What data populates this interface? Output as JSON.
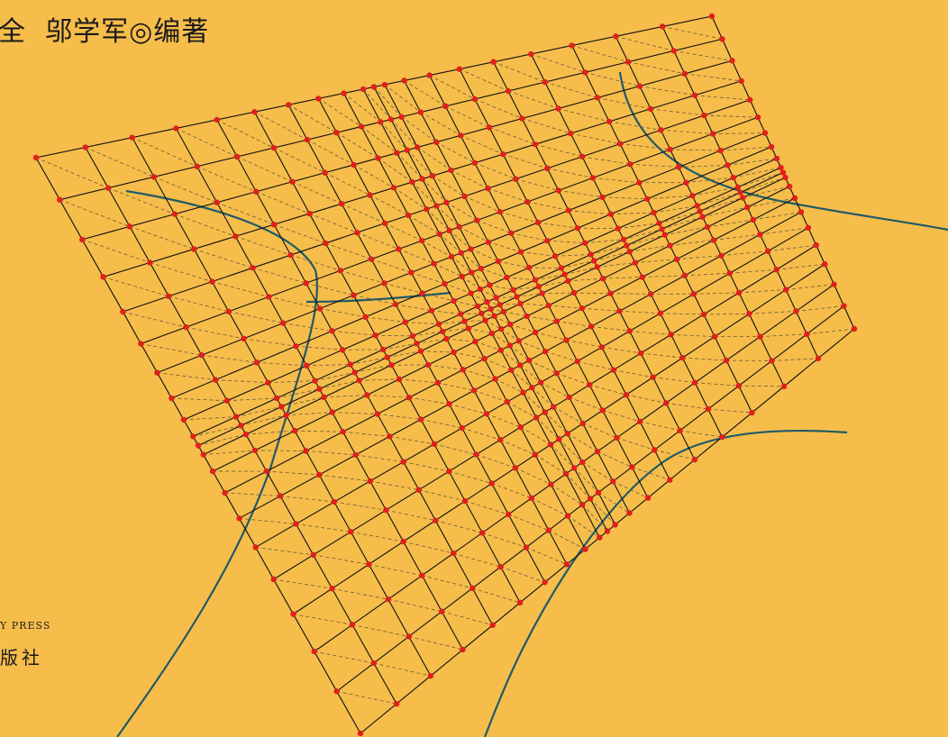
{
  "header": {
    "authors": "全  邬学军◎编著"
  },
  "publisher": {
    "english": "Y PRESS",
    "chinese": "版社"
  }
}
